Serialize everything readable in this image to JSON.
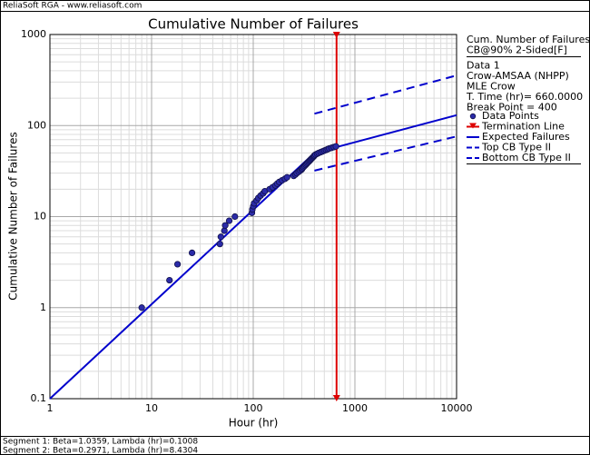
{
  "header": "ReliaSoft RGA - www.reliasoft.com",
  "footer": [
    "Segment 1: Beta=1.0359, Lambda (hr)=0.1008",
    "Segment 2: Beta=0.2971, Lambda (hr)=8.4304"
  ],
  "chart_data": {
    "type": "line",
    "title": "Cumulative Number of Failures",
    "x_label": "Hour (hr)",
    "y_label": "Cumulative Number of Failures",
    "log_x": true,
    "log_y": true,
    "grid": true,
    "minor_grid": true,
    "xlim": [
      1,
      10000
    ],
    "xticks": [
      1,
      10,
      100,
      1000,
      10000
    ],
    "ylim": [
      0.1,
      1000
    ],
    "yticks": [
      0.1,
      1,
      10,
      100,
      1000
    ],
    "legend_header": [
      "Cum. Number of Failures",
      "CB@90% 2-Sided[F]",
      "Data 1",
      "Crow-AMSAA (NHPP)",
      "MLE Crow",
      "T. Time (hr)= 660.0000",
      "Break Point = 400"
    ],
    "legend_position": "right",
    "series": [
      {
        "name": "Data Points",
        "style": "points",
        "color": "#2b2ba8",
        "x": [
          8,
          15,
          18,
          25,
          47,
          48,
          52,
          53,
          58,
          66,
          97,
          98,
          100,
          102,
          108,
          112,
          118,
          125,
          130,
          145,
          155,
          165,
          172,
          180,
          192,
          205,
          215,
          250,
          260,
          268,
          280,
          290,
          300,
          305,
          312,
          320,
          328,
          335,
          342,
          350,
          358,
          365,
          372,
          380,
          388,
          395,
          400,
          410,
          425,
          440,
          460,
          480,
          500,
          520,
          540,
          560,
          590,
          620,
          650
        ],
        "values": [
          1,
          2,
          3,
          4,
          5,
          6,
          7,
          8,
          9,
          10,
          11,
          12,
          13,
          14,
          15,
          16,
          17,
          18,
          19,
          20,
          21,
          22,
          23,
          24,
          25,
          26,
          27,
          28,
          29,
          30,
          31,
          32,
          33,
          34,
          35,
          36,
          37,
          38,
          39,
          40,
          41,
          42,
          43,
          44,
          45,
          46,
          47,
          48,
          49,
          50,
          51,
          52,
          53,
          54,
          55,
          56,
          57,
          58,
          59
        ]
      },
      {
        "name": "Termination Line",
        "style": "vline",
        "color": "#dd0000",
        "x": [
          660
        ]
      },
      {
        "name": "Expected Failures",
        "style": "solid",
        "color": "#0000cc",
        "x": [
          1,
          400,
          10000
        ],
        "values": [
          0.1,
          50,
          130
        ]
      },
      {
        "name": "Top CB Type II",
        "style": "dashed",
        "color": "#0000cc",
        "x": [
          400,
          10000
        ],
        "values": [
          135,
          355
        ]
      },
      {
        "name": "Bottom CB Type II",
        "style": "dashed",
        "color": "#0000cc",
        "x": [
          400,
          10000
        ],
        "values": [
          32,
          76
        ]
      }
    ]
  }
}
